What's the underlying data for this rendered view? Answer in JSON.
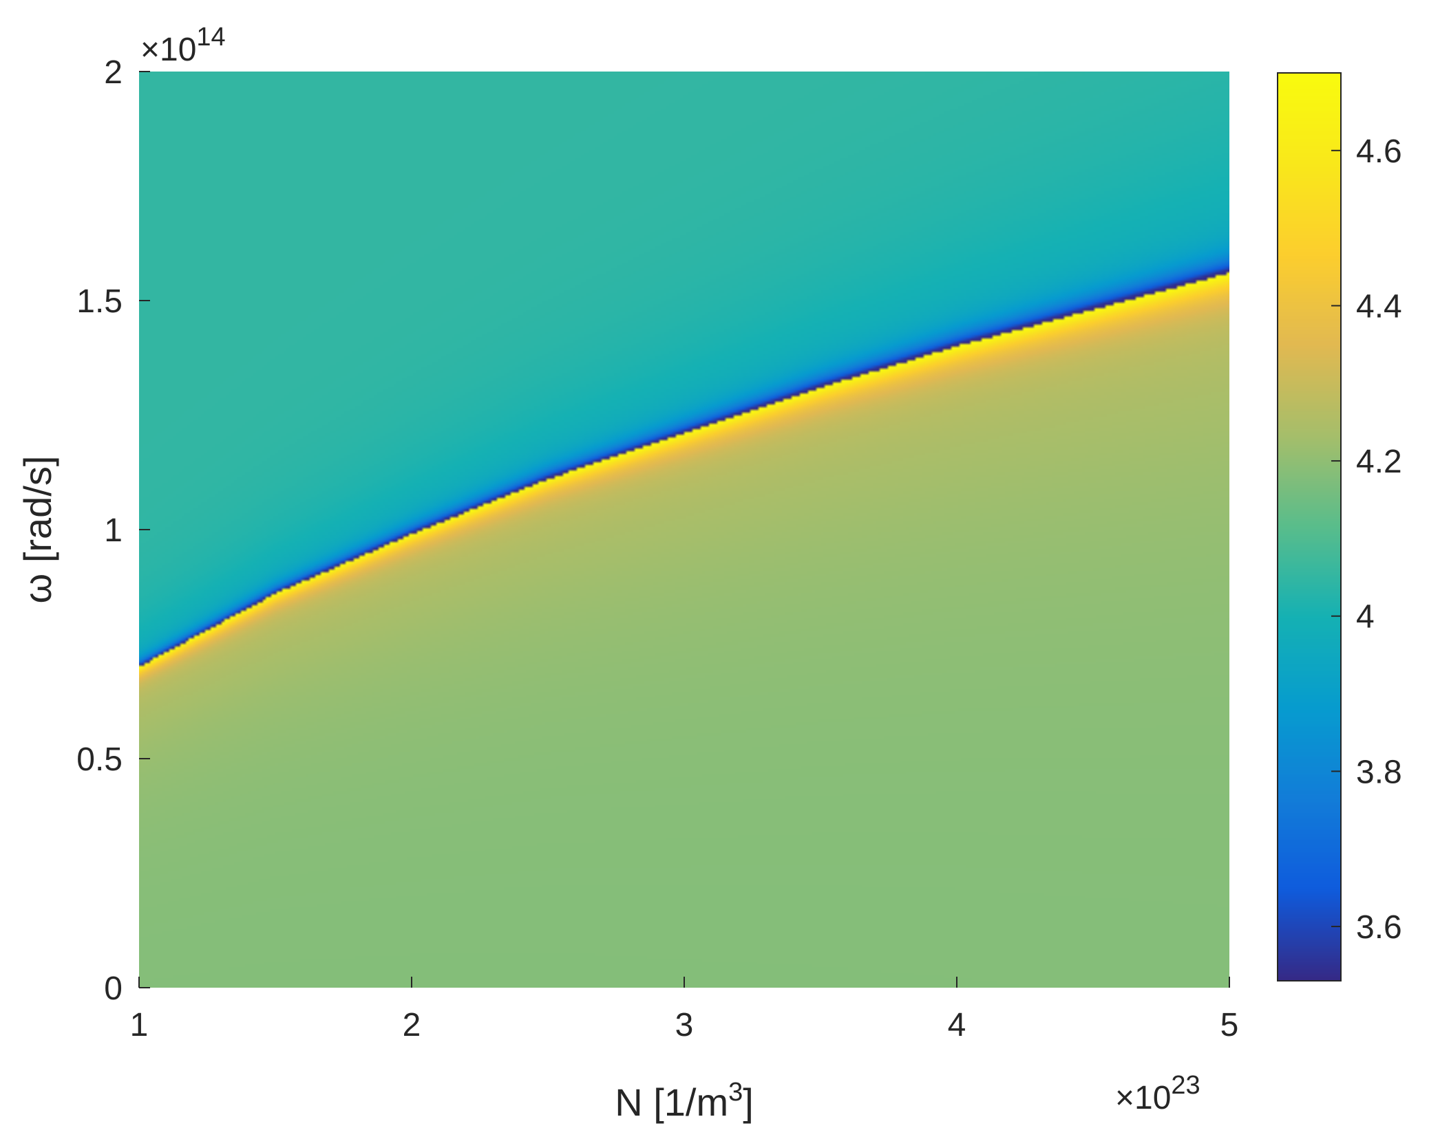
{
  "chart_data": {
    "type": "heatmap",
    "title": "",
    "xlabel": "N [1/m3]",
    "xlabel_parts": {
      "base": "N [1/m",
      "sup": "3",
      "tail": "]"
    },
    "ylabel": "ω [rad/s]",
    "x_multiplier": {
      "base": "×10",
      "exp": "23"
    },
    "y_multiplier": {
      "base": "×10",
      "exp": "14"
    },
    "xlim": [
      1,
      5
    ],
    "ylim": [
      0,
      2
    ],
    "x_ticks": [
      1,
      2,
      3,
      4,
      5
    ],
    "x_tick_labels": [
      "1",
      "2",
      "3",
      "4",
      "5"
    ],
    "y_ticks": [
      0,
      0.5,
      1,
      1.5,
      2
    ],
    "y_tick_labels": [
      "0",
      "0.5",
      "1",
      "1.5",
      "2"
    ],
    "resonance_curve": {
      "x": [
        1,
        1.5,
        2,
        2.5,
        3,
        3.5,
        4,
        4.5,
        5
      ],
      "y": [
        0.7,
        0.86,
        0.99,
        1.11,
        1.21,
        1.31,
        1.4,
        1.48,
        1.56
      ]
    },
    "background": {
      "above_curve": 4.05,
      "below_curve_near": 4.3,
      "below_curve_far": 4.18
    },
    "colorbar": {
      "range": [
        3.53,
        4.7
      ],
      "ticks": [
        3.6,
        3.8,
        4,
        4.2,
        4.4,
        4.6
      ],
      "tick_labels": [
        "3.6",
        "3.8",
        "4",
        "4.2",
        "4.4",
        "4.6"
      ],
      "colormap": "parula"
    },
    "grid": false,
    "legend": "none"
  }
}
